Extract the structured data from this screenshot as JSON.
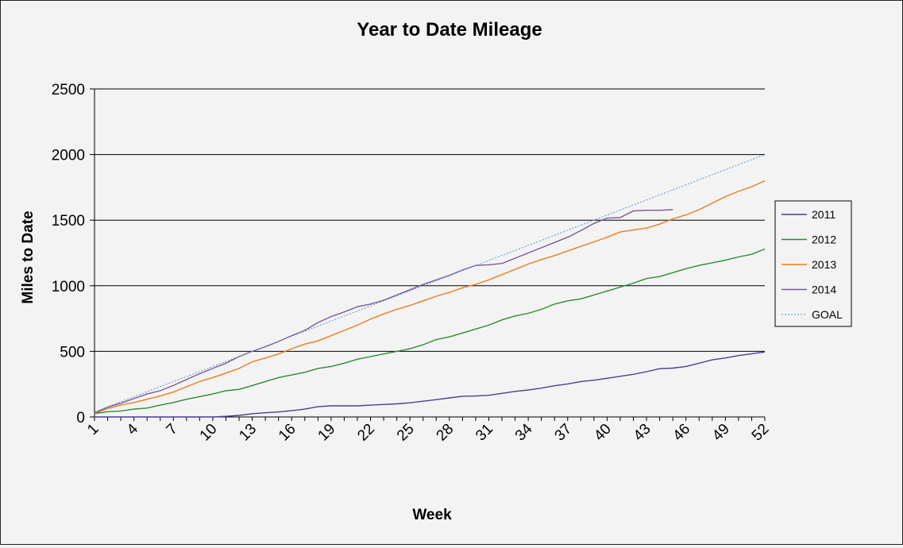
{
  "chart_data": {
    "type": "line",
    "title": "Year to Date Mileage",
    "xlabel": "Week",
    "ylabel": "Miles to Date",
    "ylim": [
      0,
      2500
    ],
    "yticks": [
      0,
      500,
      1000,
      1500,
      2000,
      2500
    ],
    "xlim": [
      1,
      52
    ],
    "xticks": [
      1,
      4,
      7,
      10,
      13,
      16,
      19,
      22,
      25,
      28,
      31,
      34,
      37,
      40,
      43,
      46,
      49,
      52
    ],
    "grid": "horizontal",
    "legend_position": "right",
    "series": [
      {
        "name": "2011",
        "color": "#4b3f94",
        "dashed": false,
        "x": [
          1,
          2,
          3,
          4,
          5,
          6,
          7,
          8,
          9,
          10,
          11,
          12,
          13,
          14,
          15,
          16,
          17,
          18,
          19,
          20,
          21,
          22,
          23,
          24,
          25,
          26,
          27,
          28,
          29,
          30,
          31,
          32,
          33,
          34,
          35,
          36,
          37,
          38,
          39,
          40,
          41,
          42,
          43,
          44,
          45,
          46,
          47,
          48,
          49,
          50,
          51,
          52
        ],
        "values": [
          0,
          0,
          0,
          0,
          0,
          0,
          0,
          0,
          0,
          0,
          5,
          12,
          25,
          32,
          38,
          48,
          60,
          78,
          85,
          85,
          85,
          90,
          95,
          100,
          108,
          120,
          132,
          145,
          158,
          160,
          165,
          180,
          195,
          205,
          220,
          238,
          252,
          270,
          280,
          295,
          310,
          325,
          345,
          368,
          372,
          385,
          410,
          435,
          450,
          468,
          482,
          495
        ]
      },
      {
        "name": "2012",
        "color": "#2e8b2e",
        "dashed": false,
        "x": [
          1,
          2,
          3,
          4,
          5,
          6,
          7,
          8,
          9,
          10,
          11,
          12,
          13,
          14,
          15,
          16,
          17,
          18,
          19,
          20,
          21,
          22,
          23,
          24,
          25,
          26,
          27,
          28,
          29,
          30,
          31,
          32,
          33,
          34,
          35,
          36,
          37,
          38,
          39,
          40,
          41,
          42,
          43,
          44,
          45,
          46,
          47,
          48,
          49,
          50,
          51,
          52
        ],
        "values": [
          25,
          40,
          45,
          60,
          68,
          90,
          110,
          135,
          155,
          175,
          200,
          210,
          240,
          270,
          300,
          320,
          340,
          370,
          385,
          410,
          440,
          460,
          480,
          500,
          520,
          550,
          590,
          610,
          640,
          670,
          700,
          740,
          770,
          790,
          820,
          860,
          885,
          900,
          930,
          960,
          990,
          1020,
          1055,
          1070,
          1100,
          1130,
          1155,
          1175,
          1195,
          1220,
          1240,
          1280
        ]
      },
      {
        "name": "2013",
        "color": "#f07a1a",
        "dashed": false,
        "x": [
          1,
          2,
          3,
          4,
          5,
          6,
          7,
          8,
          9,
          10,
          11,
          12,
          13,
          14,
          15,
          16,
          17,
          18,
          19,
          20,
          21,
          22,
          23,
          24,
          25,
          26,
          27,
          28,
          29,
          30,
          31,
          32,
          33,
          34,
          35,
          36,
          37,
          38,
          39,
          40,
          41,
          42,
          43,
          44,
          45,
          46,
          47,
          48,
          49,
          50,
          51,
          52
        ],
        "values": [
          25,
          65,
          90,
          110,
          135,
          160,
          190,
          230,
          270,
          300,
          335,
          370,
          420,
          450,
          480,
          520,
          555,
          580,
          620,
          660,
          700,
          745,
          785,
          820,
          850,
          885,
          920,
          950,
          985,
          1010,
          1045,
          1085,
          1125,
          1165,
          1200,
          1230,
          1265,
          1300,
          1335,
          1370,
          1410,
          1425,
          1440,
          1470,
          1510,
          1540,
          1580,
          1630,
          1680,
          1720,
          1755,
          1800
        ]
      },
      {
        "name": "2014",
        "color": "#7b5a9e",
        "dashed": false,
        "x": [
          1,
          2,
          3,
          4,
          5,
          6,
          7,
          8,
          9,
          10,
          11,
          12,
          13,
          14,
          15,
          16,
          17,
          18,
          19,
          20,
          21,
          22,
          23,
          24,
          25,
          26,
          27,
          28,
          29,
          30,
          31,
          32,
          33,
          34,
          35,
          36,
          37,
          38,
          39,
          40,
          41,
          42,
          43,
          44,
          45
        ],
        "values": [
          30,
          75,
          105,
          140,
          175,
          200,
          240,
          285,
          330,
          370,
          410,
          460,
          500,
          535,
          575,
          620,
          660,
          720,
          765,
          800,
          840,
          860,
          890,
          930,
          970,
          1010,
          1045,
          1080,
          1120,
          1155,
          1160,
          1170,
          1210,
          1250,
          1290,
          1330,
          1370,
          1420,
          1475,
          1515,
          1520,
          1570,
          1575,
          1575,
          1580
        ]
      },
      {
        "name": "GOAL",
        "color": "#5b8fc8",
        "dashed": true,
        "x": [
          1,
          52
        ],
        "values": [
          38.46,
          2000
        ]
      }
    ]
  }
}
